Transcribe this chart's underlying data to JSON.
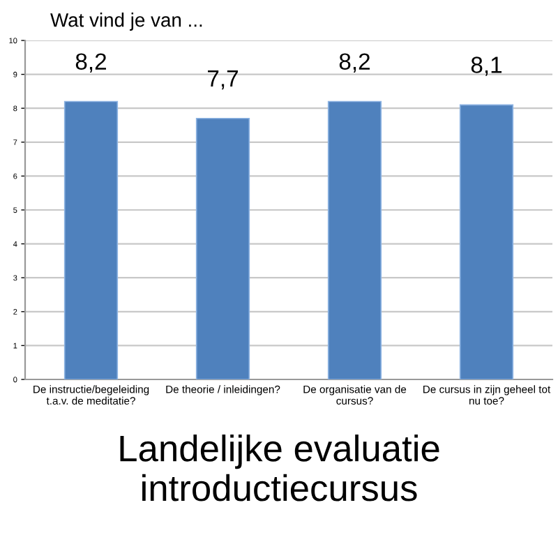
{
  "chart_data": {
    "type": "bar",
    "title": "Wat vind je van ...",
    "categories": [
      "De instructie/begeleiding\nt.a.v. de meditatie?",
      "De theorie / inleidingen?",
      "De organisatie van de\ncursus?",
      "De cursus in zijn geheel tot\nnu toe?"
    ],
    "values": [
      8.2,
      7.7,
      8.2,
      8.1
    ],
    "value_labels": [
      "8,2",
      "7,7",
      "8,2",
      "8,1"
    ],
    "color": "#4f81bd",
    "ylim": [
      0,
      10
    ],
    "yticks": [
      0,
      1,
      2,
      3,
      4,
      5,
      6,
      7,
      8,
      9,
      10
    ],
    "grid": "y",
    "annotations": [
      "Landelijke evaluatie\nintroductiecursus"
    ]
  }
}
